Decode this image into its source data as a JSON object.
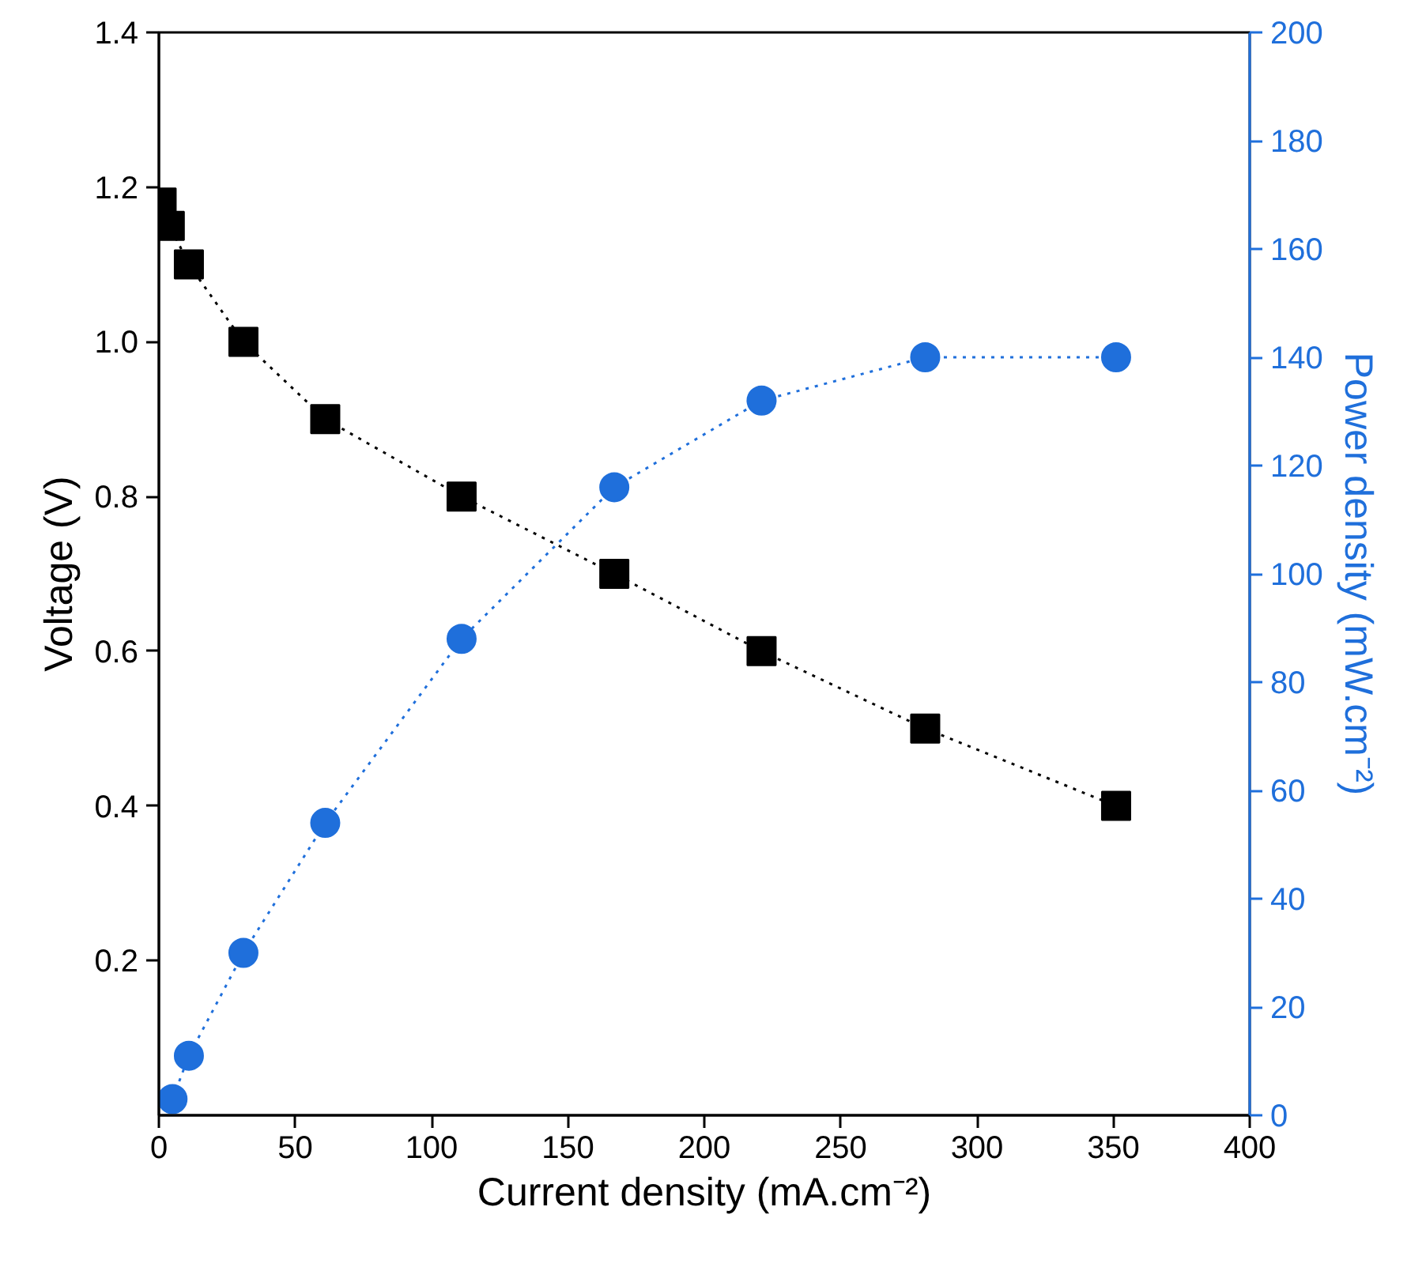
{
  "chart_data": {
    "type": "line",
    "xlabel": "Current density (mA.cm⁻²)",
    "ylabel": "Voltage (V)",
    "y2label": "Power density (mW.cm⁻²)",
    "xlim": [
      0,
      400
    ],
    "xticks": [
      0,
      50,
      100,
      150,
      200,
      250,
      300,
      350,
      400
    ],
    "ylim": [
      0,
      1.4
    ],
    "yticks": [
      0.2,
      0.4,
      0.6,
      0.8,
      {
        "value": 1,
        "label": "1.0"
      },
      1.2,
      1.4
    ],
    "y2lim": [
      0,
      200
    ],
    "y2ticks": [
      0,
      20,
      40,
      60,
      80,
      100,
      120,
      140,
      160,
      180,
      200
    ],
    "line_style": "dotted",
    "series": [
      {
        "color": "#000000",
        "marker": "square",
        "x": [
          1,
          4,
          11,
          31,
          61,
          111,
          167,
          221,
          281,
          351
        ],
        "values": [
          1.18,
          1.15,
          1.1,
          1.0,
          0.9,
          0.8,
          0.7,
          0.6,
          0.5,
          0.4
        ]
      },
      {
        "color": "#1f6fdb",
        "marker": "circle",
        "axis": "y2",
        "x": [
          5,
          11,
          31,
          61,
          111,
          167,
          221,
          281,
          351
        ],
        "values": [
          3,
          11,
          30,
          54,
          88,
          116,
          132,
          140,
          140
        ]
      }
    ]
  }
}
